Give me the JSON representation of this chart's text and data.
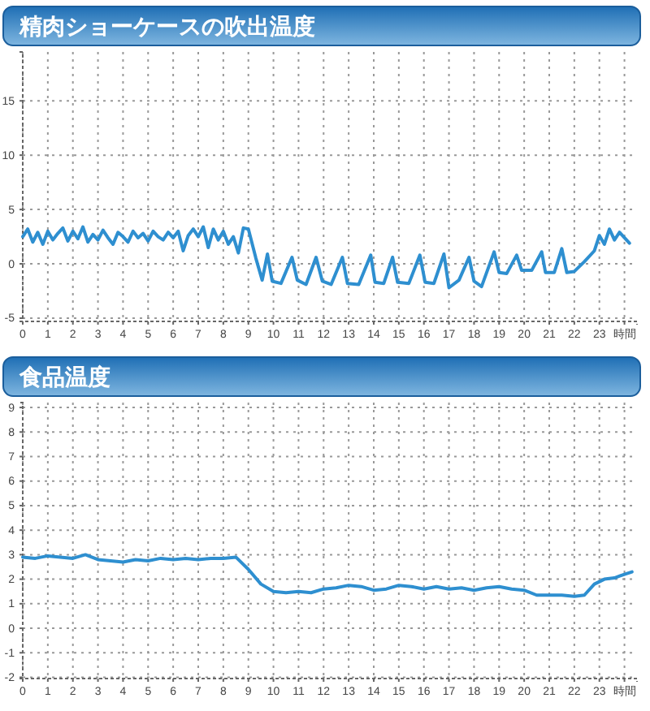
{
  "chart_data": [
    {
      "type": "line",
      "title": "精肉ショーケースの吹出温度",
      "x": [
        0,
        0.2,
        0.4,
        0.6,
        0.8,
        1,
        1.2,
        1.4,
        1.6,
        1.8,
        2,
        2.2,
        2.4,
        2.6,
        2.8,
        3,
        3.2,
        3.4,
        3.6,
        3.8,
        4,
        4.2,
        4.4,
        4.6,
        4.8,
        5,
        5.2,
        5.4,
        5.6,
        5.8,
        6,
        6.2,
        6.4,
        6.6,
        6.8,
        7,
        7.2,
        7.4,
        7.6,
        7.8,
        8,
        8.2,
        8.4,
        8.6,
        8.8,
        9,
        9.3,
        9.55,
        9.76,
        9.95,
        10.3,
        10.74,
        10.95,
        11.3,
        11.7,
        11.95,
        12.3,
        12.75,
        12.95,
        13.4,
        13.88,
        14.05,
        14.4,
        14.75,
        14.95,
        15.4,
        15.84,
        16.05,
        16.4,
        16.8,
        17,
        17.4,
        17.8,
        18,
        18.3,
        18.8,
        19,
        19.3,
        19.7,
        19.9,
        20.3,
        20.7,
        20.85,
        21.2,
        21.5,
        21.7,
        22,
        22.4,
        22.8,
        23,
        23.2,
        23.4,
        23.6,
        23.8,
        24,
        24.2
      ],
      "values": [
        2.5,
        3.2,
        2,
        2.9,
        1.8,
        3,
        2.2,
        2.8,
        3.3,
        2.1,
        3,
        2.3,
        3.4,
        2,
        2.7,
        2.2,
        3.1,
        2.4,
        1.8,
        2.9,
        2.5,
        2,
        3,
        2.4,
        2.8,
        2.1,
        3,
        2.5,
        2.2,
        2.9,
        2.4,
        3,
        1.2,
        2.6,
        3.2,
        2.5,
        3.4,
        1.5,
        3.2,
        2.2,
        3,
        1.8,
        2.5,
        1,
        3.3,
        3.2,
        0.5,
        -1.5,
        0.9,
        -1.6,
        -1.8,
        0.6,
        -1.5,
        -1.9,
        0.6,
        -1.6,
        -1.9,
        0.6,
        -1.8,
        -1.9,
        0.8,
        -1.7,
        -1.8,
        0.6,
        -1.7,
        -1.8,
        0.8,
        -1.7,
        -1.8,
        0.9,
        -2.2,
        -1.5,
        0.6,
        -1.6,
        -2.1,
        1.1,
        -0.8,
        -0.9,
        0.8,
        -0.6,
        -0.6,
        1.1,
        -0.8,
        -0.8,
        1.4,
        -0.8,
        -0.7,
        0.2,
        1.2,
        2.6,
        1.8,
        3.2,
        2.2,
        2.9,
        2.4,
        1.9
      ],
      "color": "#2e8fd0",
      "xlim": [
        0,
        24.5
      ],
      "ylim": [
        -5.3,
        19.5
      ],
      "xticks": [
        0,
        1,
        2,
        3,
        4,
        5,
        6,
        7,
        8,
        9,
        10,
        11,
        12,
        13,
        14,
        15,
        16,
        17,
        18,
        19,
        20,
        21,
        22,
        23,
        {
          "value": 24,
          "label": "時間"
        }
      ],
      "yticks": [
        -5,
        0,
        5,
        10,
        15
      ],
      "grid": true
    },
    {
      "type": "line",
      "title": "食品温度",
      "x": [
        0,
        0.5,
        1,
        1.5,
        2,
        2.5,
        3,
        3.5,
        4,
        4.5,
        5,
        5.5,
        6,
        6.5,
        7,
        7.5,
        8,
        8.5,
        9,
        9.5,
        10,
        10.5,
        11,
        11.5,
        12,
        12.5,
        13,
        13.5,
        14,
        14.5,
        15,
        15.5,
        16,
        16.5,
        17,
        17.5,
        18,
        18.5,
        19,
        19.5,
        20,
        20.5,
        21,
        21.5,
        22,
        22.4,
        22.8,
        23.2,
        23.6,
        24,
        24.3
      ],
      "values": [
        2.9,
        2.85,
        2.95,
        2.9,
        2.85,
        3,
        2.8,
        2.75,
        2.7,
        2.8,
        2.75,
        2.85,
        2.8,
        2.85,
        2.8,
        2.85,
        2.85,
        2.9,
        2.4,
        1.8,
        1.5,
        1.45,
        1.5,
        1.45,
        1.6,
        1.65,
        1.75,
        1.7,
        1.55,
        1.6,
        1.75,
        1.7,
        1.6,
        1.7,
        1.6,
        1.65,
        1.55,
        1.65,
        1.7,
        1.6,
        1.55,
        1.35,
        1.35,
        1.35,
        1.3,
        1.35,
        1.8,
        2,
        2.05,
        2.2,
        2.3
      ],
      "color": "#2e8fd0",
      "xlim": [
        0,
        24.5
      ],
      "ylim": [
        -2.05,
        9.2
      ],
      "xticks": [
        0,
        1,
        2,
        3,
        4,
        5,
        6,
        7,
        8,
        9,
        10,
        11,
        12,
        13,
        14,
        15,
        16,
        17,
        18,
        19,
        20,
        21,
        22,
        23,
        {
          "value": 24,
          "label": "時間"
        }
      ],
      "yticks": [
        -2,
        -1,
        0,
        1,
        2,
        3,
        4,
        5,
        6,
        7,
        8,
        9
      ],
      "grid": true
    }
  ]
}
